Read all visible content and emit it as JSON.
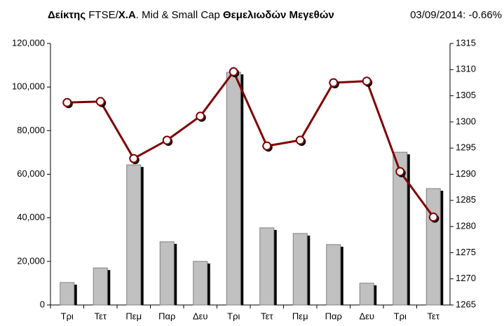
{
  "chart_data": {
    "type": "bar_line",
    "title": [
      "Δείκτης ",
      "FTSE/",
      "Χ.Α",
      ". Mid & Small Cap ",
      "Θεμελιωδών Μεγεθών"
    ],
    "subtitle": "03/09/2014: -0.66%",
    "categories": [
      "Τρι",
      "Τετ",
      "Πεμ",
      "Παρ",
      "Δευ",
      "Τρι",
      "Τετ",
      "Πεμ",
      "Παρ",
      "Δευ",
      "Τρι",
      "Τετ"
    ],
    "series": [
      {
        "type": "bar",
        "color": "#c0c0c0",
        "values": [
          10300,
          17000,
          64300,
          29000,
          20000,
          106800,
          35400,
          32800,
          27700,
          10000,
          70100,
          53400
        ]
      },
      {
        "type": "line",
        "axis": "y2",
        "color": "#800000",
        "values": [
          1303.7,
          1303.9,
          1293.0,
          1296.5,
          1301.1,
          1309.6,
          1295.4,
          1296.5,
          1307.5,
          1307.8,
          1290.5,
          1281.8
        ]
      }
    ],
    "ylim": [
      0,
      120000
    ],
    "yticks": [
      0,
      {
        "value": 20000,
        "label": "20,000"
      },
      {
        "value": 40000,
        "label": "40,000"
      },
      {
        "value": 60000,
        "label": "60,000"
      },
      {
        "value": 80000,
        "label": "80,000"
      },
      {
        "value": 100000,
        "label": "100,000"
      },
      {
        "value": 120000,
        "label": "120,000"
      }
    ],
    "y2lim": [
      1265,
      1315
    ],
    "y2ticks": [
      1265,
      1270,
      1275,
      1280,
      1285,
      1290,
      1295,
      1300,
      1305,
      1310,
      1315
    ]
  }
}
